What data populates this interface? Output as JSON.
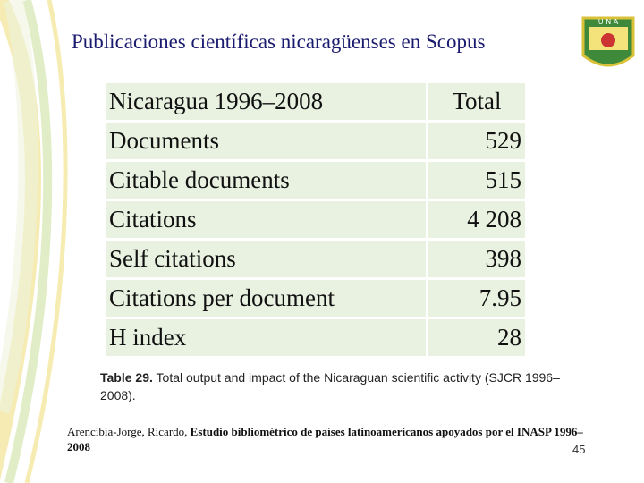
{
  "header": {
    "title": "Publicaciones científicas nicaragüenses en Scopus"
  },
  "logo": {
    "text": "U N A"
  },
  "table": {
    "header": [
      "Nicaragua 1996–2008",
      "Total"
    ],
    "rows": [
      [
        "Documents",
        "529"
      ],
      [
        "Citable documents",
        "515"
      ],
      [
        "Citations",
        "4 208"
      ],
      [
        "Self citations",
        "398"
      ],
      [
        "Citations per document",
        "7.95"
      ],
      [
        "H index",
        "28"
      ]
    ]
  },
  "caption": {
    "label": "Table 29.",
    "text": "Total output and impact of the Nicaraguan scientific activity (SJCR 1996–2008)."
  },
  "citation": {
    "author": "Arencibia-Jorge,  Ricardo,",
    "title": "Estudio bibliométrico de países latinoamericanos apoyados por el INASP 1996–2008"
  },
  "page_number": "45"
}
